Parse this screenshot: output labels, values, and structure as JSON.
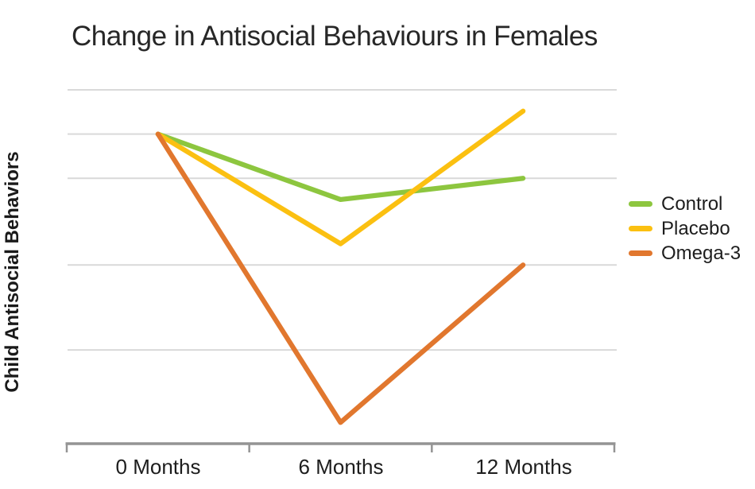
{
  "chart_data": {
    "type": "line",
    "title": "Change in Antisocial Behaviours in Females",
    "xlabel": "",
    "ylabel": "Child Antisocial Behaviors",
    "categories": [
      "0 Months",
      "6 Months",
      "12 Months"
    ],
    "series": [
      {
        "name": "Control",
        "color": "#8dc63f",
        "values": [
          8.75,
          6.9,
          7.5
        ]
      },
      {
        "name": "Placebo",
        "color": "#fbc011",
        "values": [
          8.75,
          5.65,
          9.4
        ]
      },
      {
        "name": "Omega-3",
        "color": "#e1772e",
        "values": [
          8.75,
          0.6,
          5.05
        ]
      }
    ],
    "ylim": [
      0,
      10.5
    ],
    "y_tick_labels": [],
    "gridline_values": [
      10,
      8.75,
      7.5,
      5.05,
      2.65
    ],
    "grid": "horizontal",
    "legend_position": "right",
    "value_scale_note": "y-axis has no numeric tick labels; values estimated on a relative 0-10 scale where the x-axis baseline = 0"
  },
  "colors": {
    "gridline": "#d9d9d9",
    "axis": "#949494",
    "title_text": "#272727",
    "label_text": "#1d1d1d"
  }
}
